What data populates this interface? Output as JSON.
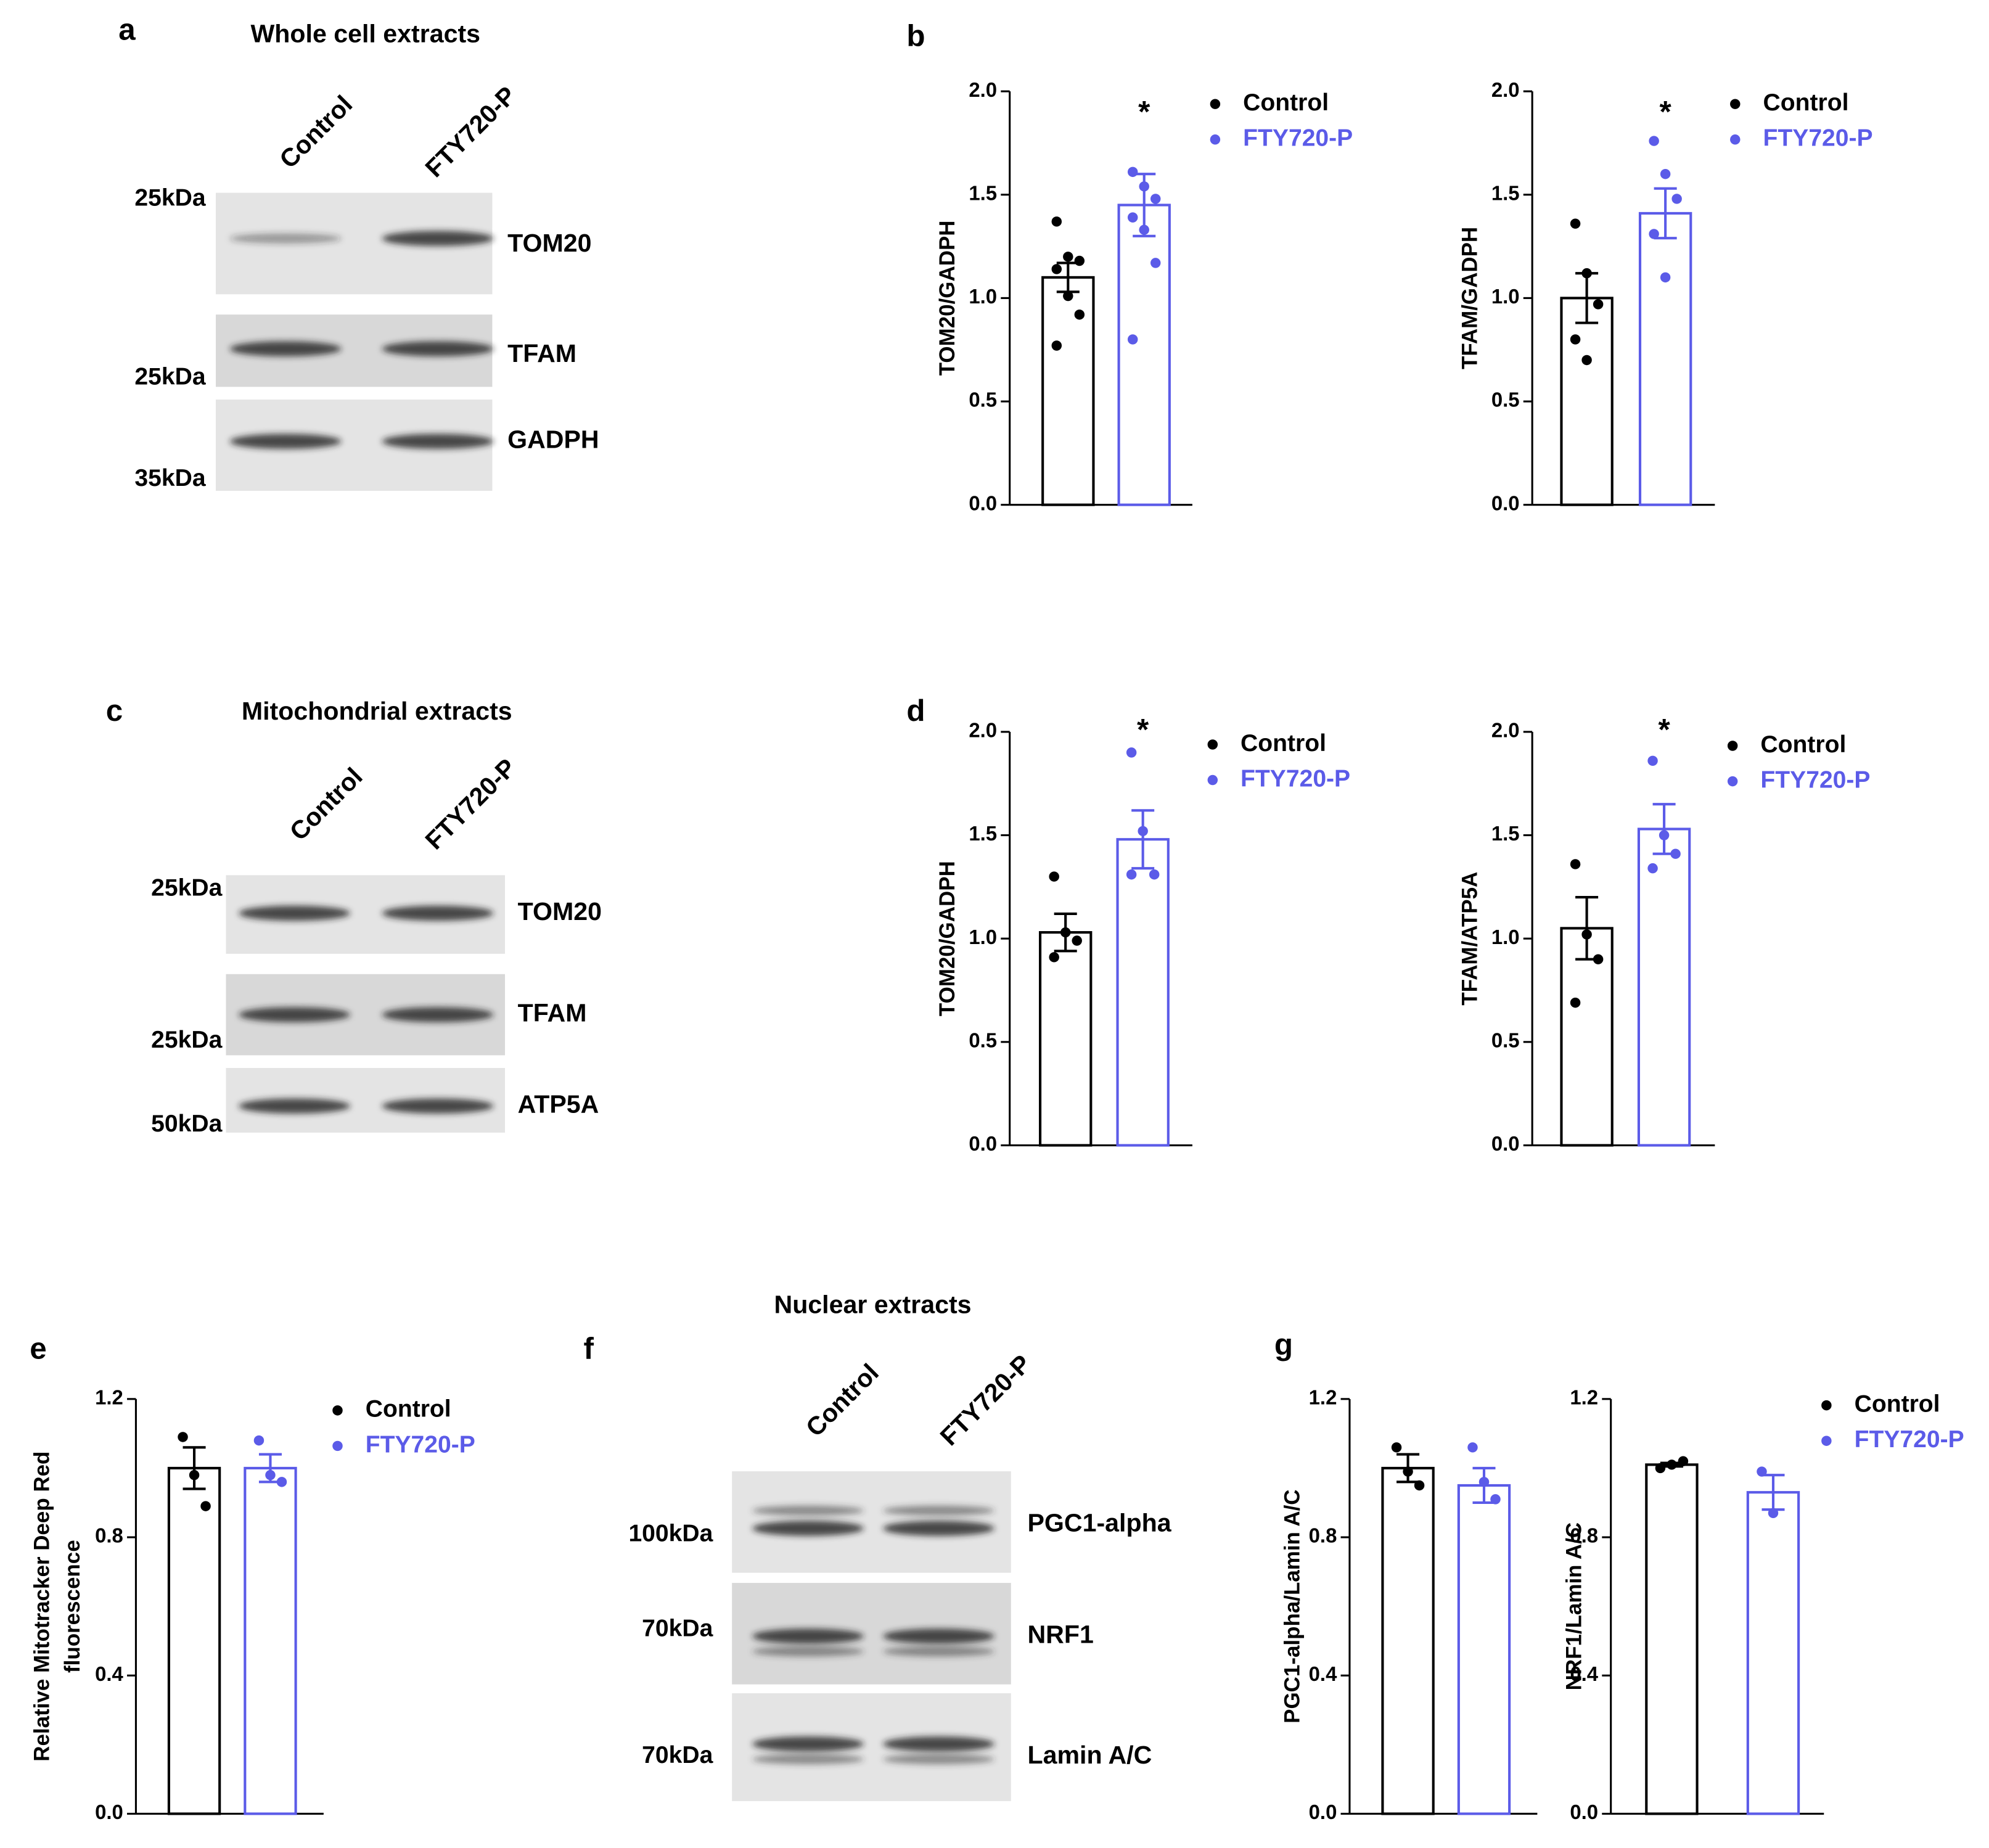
{
  "panel_labels": [
    "a",
    "b",
    "c",
    "d",
    "e",
    "f",
    "g"
  ],
  "blots": [
    {
      "title": "Whole cell extracts",
      "lanes": [
        "Control",
        "FTY720-P"
      ],
      "markers": [
        "25kDa",
        "25kDa",
        "35kDa"
      ],
      "proteins": [
        "TOM20",
        "TFAM",
        "GADPH"
      ]
    },
    {
      "title": "Mitochondrial extracts",
      "lanes": [
        "Control",
        "FTY720-P"
      ],
      "markers": [
        "25kDa",
        "25kDa",
        "50kDa"
      ],
      "proteins": [
        "TOM20",
        "TFAM",
        "ATP5A"
      ]
    },
    {
      "title": "Nuclear extracts",
      "lanes": [
        "Control",
        "FTY720-P"
      ],
      "markers": [
        "100kDa",
        "70kDa",
        "70kDa"
      ],
      "proteins": [
        "PGC1-alpha",
        "NRF1",
        "Lamin A/C"
      ]
    }
  ],
  "chart_data": [
    {
      "type": "bar",
      "ylabel": "TOM20/GADPH",
      "ylim": [
        0,
        2
      ],
      "yticks": [
        {
          "value": 0,
          "label": "0.0"
        },
        0.5,
        {
          "value": 1,
          "label": "1.0"
        },
        1.5,
        {
          "value": 2,
          "label": "2.0"
        }
      ],
      "legend": true,
      "annotation": "*",
      "series": [
        {
          "name": "Control",
          "color": "#000000",
          "values": [
            1.1
          ],
          "errors": [
            0.07
          ],
          "points": [
            1.37,
            1.2,
            1.18,
            1.14,
            1.01,
            0.92,
            0.77
          ]
        },
        {
          "name": "FTY720-P",
          "color": "#5b5be8",
          "values": [
            1.45
          ],
          "errors": [
            0.15
          ],
          "points": [
            1.61,
            1.54,
            1.48,
            1.39,
            1.33,
            1.17,
            0.8
          ]
        }
      ]
    },
    {
      "type": "bar",
      "ylabel": "TFAM/GADPH",
      "ylim": [
        0,
        2
      ],
      "yticks": [
        {
          "value": 0,
          "label": "0.0"
        },
        0.5,
        {
          "value": 1,
          "label": "1.0"
        },
        1.5,
        {
          "value": 2,
          "label": "2.0"
        }
      ],
      "legend": true,
      "annotation": "*",
      "series": [
        {
          "name": "Control",
          "color": "#000000",
          "values": [
            1.0
          ],
          "errors": [
            0.12
          ],
          "points": [
            1.36,
            1.12,
            0.97,
            0.8,
            0.7
          ]
        },
        {
          "name": "FTY720-P",
          "color": "#5b5be8",
          "values": [
            1.41
          ],
          "errors": [
            0.12
          ],
          "points": [
            1.76,
            1.6,
            1.48,
            1.31,
            1.1
          ]
        }
      ]
    },
    {
      "type": "bar",
      "ylabel": "TOM20/GADPH",
      "ylim": [
        0,
        2
      ],
      "yticks": [
        {
          "value": 0,
          "label": "0.0"
        },
        0.5,
        {
          "value": 1,
          "label": "1.0"
        },
        1.5,
        {
          "value": 2,
          "label": "2.0"
        }
      ],
      "legend": true,
      "annotation": "*",
      "series": [
        {
          "name": "Control",
          "color": "#000000",
          "values": [
            1.03
          ],
          "errors": [
            0.09
          ],
          "points": [
            1.3,
            1.03,
            0.99,
            0.91
          ]
        },
        {
          "name": "FTY720-P",
          "color": "#5b5be8",
          "values": [
            1.48
          ],
          "errors": [
            0.14
          ],
          "points": [
            1.9,
            1.52,
            1.31,
            1.31
          ]
        }
      ]
    },
    {
      "type": "bar",
      "ylabel": "TFAM/ATP5A",
      "ylim": [
        0,
        2
      ],
      "yticks": [
        {
          "value": 0,
          "label": "0.0"
        },
        0.5,
        {
          "value": 1,
          "label": "1.0"
        },
        1.5,
        {
          "value": 2,
          "label": "2.0"
        }
      ],
      "legend": true,
      "annotation": "*",
      "series": [
        {
          "name": "Control",
          "color": "#000000",
          "values": [
            1.05
          ],
          "errors": [
            0.15
          ],
          "points": [
            1.36,
            1.02,
            0.9,
            0.69
          ]
        },
        {
          "name": "FTY720-P",
          "color": "#5b5be8",
          "values": [
            1.53
          ],
          "errors": [
            0.12
          ],
          "points": [
            1.86,
            1.5,
            1.41,
            1.34
          ]
        }
      ]
    },
    {
      "type": "bar",
      "ylabel": [
        "Relative Mitotracker Deep Red",
        "fluorescence"
      ],
      "ylim": [
        0,
        1.2
      ],
      "yticks": [
        {
          "value": 0,
          "label": "0.0"
        },
        0.4,
        0.8,
        1.2
      ],
      "legend": true,
      "series": [
        {
          "name": "Control",
          "color": "#000000",
          "values": [
            1.0
          ],
          "errors": [
            0.06
          ],
          "points": [
            1.09,
            0.98,
            0.89
          ]
        },
        {
          "name": "FTY720-P",
          "color": "#5b5be8",
          "values": [
            1.0
          ],
          "errors": [
            0.04
          ],
          "points": [
            1.08,
            0.98,
            0.96
          ]
        }
      ]
    },
    {
      "type": "bar",
      "ylabel": "PGC1-alpha/Lamin A/C",
      "ylim": [
        0,
        1.2
      ],
      "yticks": [
        {
          "value": 0,
          "label": "0.0"
        },
        0.4,
        0.8,
        1.2
      ],
      "legend": false,
      "series": [
        {
          "name": "Control",
          "color": "#000000",
          "values": [
            1.0
          ],
          "errors": [
            0.04
          ],
          "points": [
            1.06,
            0.99,
            0.95
          ]
        },
        {
          "name": "FTY720-P",
          "color": "#5b5be8",
          "values": [
            0.95
          ],
          "errors": [
            0.05
          ],
          "points": [
            1.06,
            0.96,
            0.91
          ]
        }
      ]
    },
    {
      "type": "bar",
      "ylabel": "NRF1/Lamin A/C",
      "ylim": [
        0,
        1.2
      ],
      "yticks": [
        {
          "value": 0,
          "label": "0.0"
        },
        0.4,
        0.8,
        1.2
      ],
      "legend": true,
      "series": [
        {
          "name": "Control",
          "color": "#000000",
          "values": [
            1.01
          ],
          "errors": [
            0.005
          ],
          "points": [
            1.0,
            1.01,
            1.02
          ]
        },
        {
          "name": "FTY720-P",
          "color": "#5b5be8",
          "values": [
            0.93
          ],
          "errors": [
            0.05
          ],
          "points": [
            0.99,
            0.87
          ]
        }
      ]
    }
  ]
}
